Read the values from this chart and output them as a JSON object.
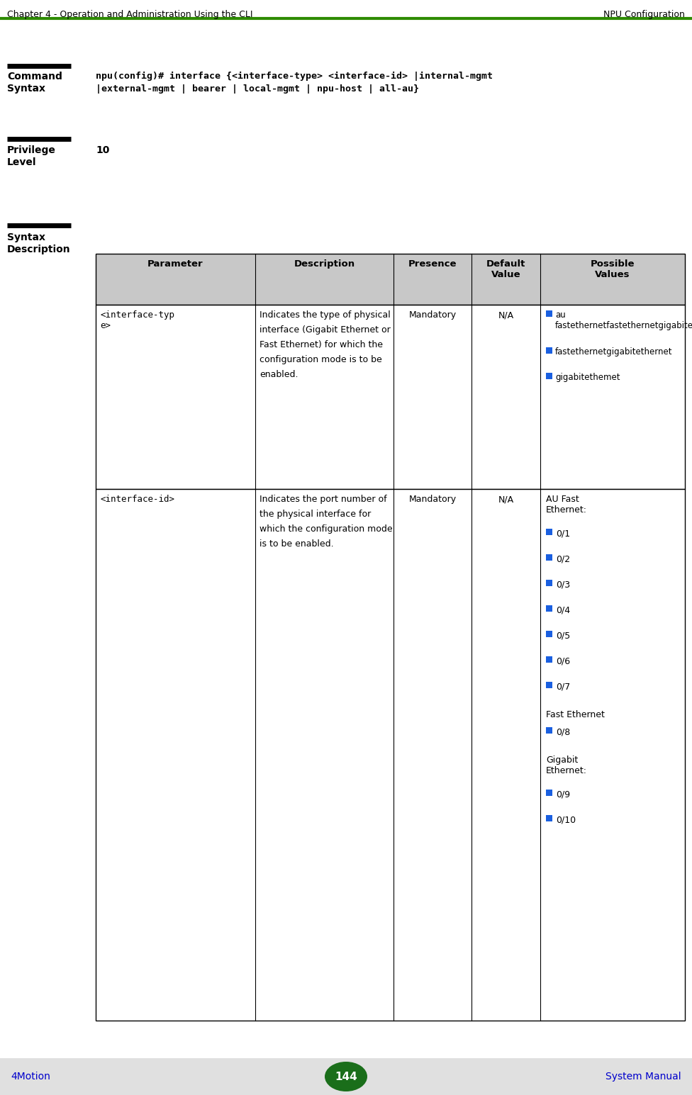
{
  "header_left": "Chapter 4 - Operation and Administration Using the CLI",
  "header_right": "NPU Configuration",
  "header_line_color": "#2e8b00",
  "footer_left": "4Motion",
  "footer_right": "System Manual",
  "footer_page": "144",
  "footer_bg": "#e0e0e0",
  "footer_ellipse_color": "#1a6e1a",
  "footer_text_color": "#0000cc",
  "section1_label1": "Command",
  "section1_label2": "Syntax",
  "cmd_line1": "npu(config)# interface {<interface-type> <interface-id> |internal-mgmt",
  "cmd_line2": "|external-mgmt | bearer | local-mgmt | npu-host | all-au}",
  "section2_label1": "Privilege",
  "section2_label2": "Level",
  "section2_value": "10",
  "section3_label1": "Syntax",
  "section3_label2": "Description",
  "table_headers": [
    "Parameter",
    "Description",
    "Presence",
    "Default\nValue",
    "Possible\nValues"
  ],
  "row1_col0": "<interface-typ\ne>",
  "row1_col1_lines": [
    "Indicates the type of physical",
    "interface (Gigabit Ethernet or",
    "Fast Ethernet) for which the",
    "configuration mode is to be",
    "enabled."
  ],
  "row1_col2": "Mandatory",
  "row1_col3": "N/A",
  "row1_pv": [
    [
      "au",
      "fastethernetfastethernetgigabitethemet"
    ],
    [
      "fastethernetgigabitethernet"
    ],
    [
      "gigabitethemet"
    ]
  ],
  "row2_col0": "<interface-id>",
  "row2_col1_lines": [
    "Indicates the port number of",
    "the physical interface for",
    "which the configuration mode",
    "is to be enabled."
  ],
  "row2_col2": "Mandatory",
  "row2_col3": "N/A",
  "row2_pv_h1": "AU Fast\nEthernet:",
  "row2_pv_b1": [
    "0/1",
    "0/2",
    "0/3",
    "0/4",
    "0/5",
    "0/6",
    "0/7"
  ],
  "row2_pv_h2": "Fast Ethernet",
  "row2_pv_b2": [
    "0/8"
  ],
  "row2_pv_h3": "Gigabit\nEthernet:",
  "row2_pv_b3": [
    "0/9",
    "0/10"
  ],
  "bullet_color": "#1a5fe0",
  "bg_color": "#ffffff",
  "table_header_bg": "#c8c8c8"
}
